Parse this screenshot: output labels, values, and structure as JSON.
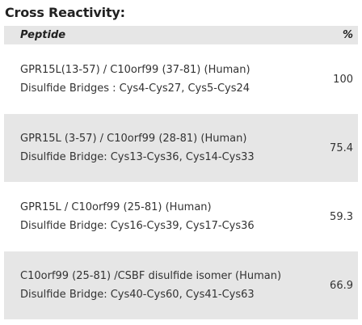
{
  "title": "Cross Reactivity:",
  "table": {
    "headers": {
      "peptide": "Peptide",
      "percent": "%"
    },
    "rows": [
      {
        "name": "GPR15L(13-57) / C10orf99 (37-81) (Human)",
        "detail": "Disulfide Bridges : Cys4-Cys27, Cys5-Cys24",
        "percent": "100"
      },
      {
        "name": "GPR15L (3-57) / C10orf99 (28-81) (Human)",
        "detail": "Disulfide Bridge: Cys13-Cys36, Cys14-Cys33",
        "percent": "75.4"
      },
      {
        "name": "GPR15L / C10orf99 (25-81) (Human)",
        "detail": "Disulfide Bridge: Cys16-Cys39, Cys17-Cys36",
        "percent": "59.3"
      },
      {
        "name": "C10orf99 (25-81) /CSBF disulfide isomer (Human)",
        "detail": "Disulfide Bridge: Cys40-Cys60, Cys41-Cys63",
        "percent": "66.9"
      }
    ]
  },
  "colors": {
    "row_shade": "#e6e6e6",
    "text": "#333333"
  }
}
